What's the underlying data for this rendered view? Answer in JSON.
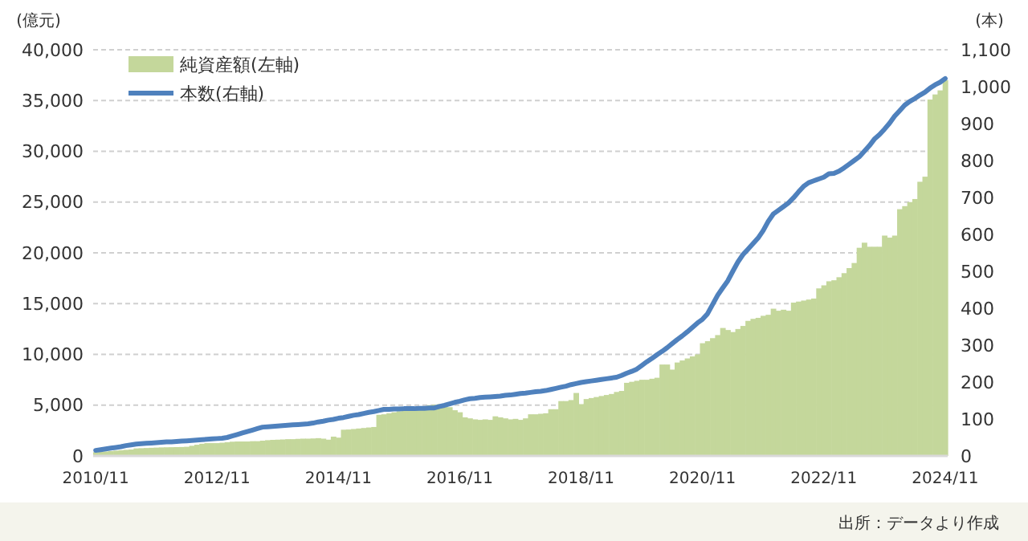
{
  "chart_data": {
    "type": "bar",
    "ylabel": "(億元)",
    "y2label": "(本)",
    "categories": [
      "2010/11",
      null,
      null,
      null,
      null,
      null,
      null,
      null,
      null,
      null,
      null,
      null,
      null,
      null,
      null,
      null,
      null,
      null,
      null,
      null,
      null,
      null,
      null,
      null,
      "2012/11",
      null,
      null,
      null,
      null,
      null,
      null,
      null,
      null,
      null,
      null,
      null,
      null,
      null,
      null,
      null,
      null,
      null,
      null,
      null,
      null,
      null,
      null,
      null,
      "2014/11",
      null,
      null,
      null,
      null,
      null,
      null,
      null,
      null,
      null,
      null,
      null,
      null,
      null,
      null,
      null,
      null,
      null,
      null,
      null,
      null,
      null,
      null,
      null,
      "2016/11",
      null,
      null,
      null,
      null,
      null,
      null,
      null,
      null,
      null,
      null,
      null,
      null,
      null,
      null,
      null,
      null,
      null,
      null,
      null,
      null,
      null,
      null,
      null,
      "2018/11",
      null,
      null,
      null,
      null,
      null,
      null,
      null,
      null,
      null,
      null,
      null,
      null,
      null,
      null,
      null,
      null,
      null,
      null,
      null,
      null,
      null,
      null,
      null,
      "2020/11",
      null,
      null,
      null,
      null,
      null,
      null,
      null,
      null,
      null,
      null,
      null,
      null,
      null,
      null,
      null,
      null,
      null,
      null,
      null,
      null,
      null,
      null,
      null,
      "2022/11",
      null,
      null,
      null,
      null,
      null,
      null,
      null,
      null,
      null,
      null,
      null,
      null,
      null,
      null,
      null,
      null,
      null,
      null,
      null,
      null,
      null,
      null,
      null,
      "2024/11"
    ],
    "series": [
      {
        "name": "純資産額(左軸)",
        "color": "#c4d79b",
        "values": [
          370,
          400,
          440,
          480,
          520,
          560,
          600,
          630,
          740,
          760,
          780,
          800,
          820,
          840,
          850,
          860,
          870,
          880,
          900,
          1000,
          1100,
          1200,
          1260,
          1260,
          1260,
          1300,
          1350,
          1400,
          1420,
          1420,
          1420,
          1450,
          1450,
          1500,
          1550,
          1580,
          1600,
          1620,
          1650,
          1650,
          1680,
          1700,
          1700,
          1720,
          1750,
          1700,
          1600,
          1900,
          1800,
          2580,
          2600,
          2650,
          2700,
          2750,
          2800,
          2850,
          4050,
          4100,
          4200,
          4300,
          4400,
          4500,
          4600,
          4700,
          4800,
          4900,
          5000,
          5050,
          5100,
          4900,
          4800,
          4500,
          4300,
          3800,
          3700,
          3600,
          3550,
          3600,
          3550,
          3900,
          3800,
          3700,
          3600,
          3650,
          3550,
          3700,
          4100,
          4100,
          4150,
          4200,
          4600,
          4600,
          5400,
          5400,
          5500,
          6200,
          5100,
          5600,
          5700,
          5800,
          5900,
          6000,
          6100,
          6300,
          6400,
          7200,
          7300,
          7400,
          7500,
          7500,
          7600,
          7700,
          9000,
          9000,
          8500,
          9200,
          9400,
          9600,
          9800,
          10000,
          11100,
          11300,
          11600,
          11900,
          12600,
          12400,
          12200,
          12500,
          12800,
          13300,
          13500,
          13600,
          13800,
          13900,
          14500,
          14300,
          14400,
          14300,
          15100,
          15200,
          15300,
          15400,
          15500,
          16500,
          16800,
          17200,
          17300,
          17600,
          18000,
          18500,
          19000,
          20500,
          21000,
          20600,
          20600,
          20600,
          21700,
          21500,
          21700,
          24300,
          24600,
          25000,
          25300,
          27000,
          27500,
          35100,
          35600,
          36000,
          37000
        ]
      },
      {
        "name": "本数(右軸)",
        "type": "line",
        "axis": "y2",
        "color": "#4f81bd",
        "values": [
          15,
          17,
          19,
          21,
          23,
          25,
          28,
          30,
          32,
          33,
          34,
          35,
          36,
          37,
          38,
          38,
          39,
          40,
          41,
          42,
          43,
          44,
          45,
          46,
          47,
          48,
          50,
          54,
          58,
          62,
          66,
          70,
          74,
          78,
          79,
          80,
          81,
          82,
          83,
          84,
          85,
          86,
          87,
          89,
          92,
          94,
          97,
          99,
          102,
          104,
          107,
          110,
          112,
          115,
          118,
          120,
          123,
          126,
          126,
          127,
          127,
          128,
          128,
          128,
          129,
          129,
          130,
          130,
          134,
          137,
          141,
          145,
          148,
          152,
          155,
          156,
          158,
          159,
          160,
          161,
          162,
          164,
          165,
          167,
          169,
          170,
          172,
          174,
          175,
          177,
          180,
          183,
          186,
          189,
          193,
          196,
          199,
          201,
          203,
          205,
          207,
          209,
          211,
          213,
          218,
          224,
          229,
          235,
          245,
          255,
          264,
          274,
          283,
          293,
          304,
          315,
          325,
          336,
          348,
          360,
          370,
          385,
          410,
          435,
          455,
          474,
          500,
          525,
          545,
          560,
          575,
          590,
          610,
          635,
          655,
          665,
          675,
          685,
          699,
          715,
          730,
          740,
          745,
          750,
          755,
          764,
          765,
          771,
          780,
          790,
          800,
          810,
          825,
          840,
          858,
          870,
          885,
          901,
          920,
          935,
          950,
          960,
          968,
          977,
          985,
          996,
          1005,
          1012,
          1022
        ]
      }
    ],
    "ylim": [
      0,
      40000
    ],
    "yticks": [
      0,
      {
        "value": 5000,
        "label": "5,000"
      },
      {
        "value": 10000,
        "label": "10,000"
      },
      {
        "value": 15000,
        "label": "15,000"
      },
      {
        "value": 20000,
        "label": "20,000"
      },
      {
        "value": 25000,
        "label": "25,000"
      },
      {
        "value": 30000,
        "label": "30,000"
      },
      {
        "value": 35000,
        "label": "35,000"
      },
      {
        "value": 40000,
        "label": "40,000"
      }
    ],
    "y2lim": [
      0,
      1100
    ],
    "y2ticks": [
      0,
      100,
      200,
      300,
      400,
      500,
      600,
      700,
      800,
      900,
      {
        "value": 1000,
        "label": "1,000"
      },
      {
        "value": 1100,
        "label": "1,100"
      }
    ],
    "grid": "y",
    "legend": "top left",
    "annotations": [
      "出所：データより作成"
    ]
  }
}
